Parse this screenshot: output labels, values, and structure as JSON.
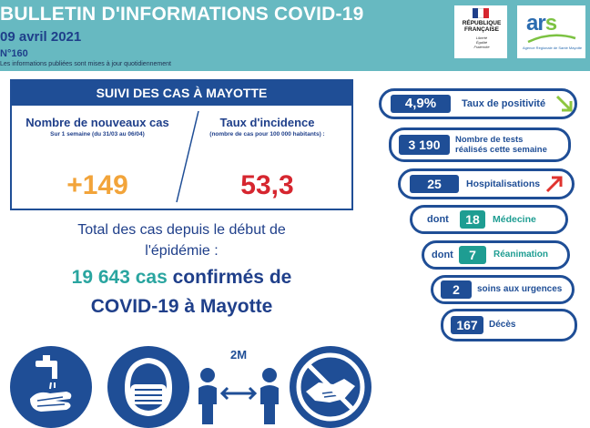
{
  "header": {
    "title": "BULLETIN D'INFORMATIONS COVID-19",
    "date": "09 avril 2021",
    "number": "N°160",
    "note": "Les informations publiées sont mises à jour quotidiennement",
    "background_color": "#67b9c1"
  },
  "logos": {
    "rf_name_1": "RÉPUBLIQUE",
    "rf_name_2": "FRANÇAISE",
    "rf_motto_1": "Liberté",
    "rf_motto_2": "Égalité",
    "rf_motto_3": "Fraternité",
    "ars_word_a": "ar",
    "ars_word_s": "s",
    "ars_sub": "Agence Régionale de Santé Mayotte"
  },
  "suivi": {
    "title": "SUIVI DES CAS À MAYOTTE",
    "new_cases_label": "Nombre de nouveaux cas",
    "new_cases_period": "Sur 1 semaine (du 31/03 au 06/04)",
    "new_cases_value": "+149",
    "incidence_label": "Taux d'incidence",
    "incidence_note": "(nombre de cas pour 100 000 habitants) :",
    "incidence_value": "53,3"
  },
  "total": {
    "line1": "Total des cas depuis le début de",
    "line2": "l'épidémie :",
    "count": "19 643 cas",
    "line3_rest": " confirmés de",
    "line4": "COVID-19 à Mayotte"
  },
  "stats": {
    "positivity": {
      "value": "4,9%",
      "label": "Taux de positivité",
      "trend": "down"
    },
    "tests": {
      "value": "3 190",
      "label_1": "Nombre de tests",
      "label_2": "réalisés cette semaine"
    },
    "hospitalisations": {
      "value": "25",
      "label": "Hospitalisations",
      "trend": "up"
    },
    "medecine": {
      "prefix": "dont",
      "value": "18",
      "label": "Médecine"
    },
    "reanimation": {
      "prefix": "dont",
      "value": "7",
      "label": "Réanimation"
    },
    "urgences": {
      "value": "2",
      "label": "soins aux urgences"
    },
    "deces": {
      "value": "167",
      "label": "Décès"
    }
  },
  "icons": {
    "handwash": "handwashing-icon",
    "mask": "mask-icon",
    "distance": "social-distancing-icon",
    "distance_label": "2M",
    "no_handshake": "no-handshake-icon"
  },
  "colors": {
    "navy": "#1f4e96",
    "teal": "#1e9d92",
    "orange": "#f2a43a",
    "red": "#d6262f",
    "green_arrow": "#8dc63f",
    "red_arrow": "#e0332e"
  }
}
